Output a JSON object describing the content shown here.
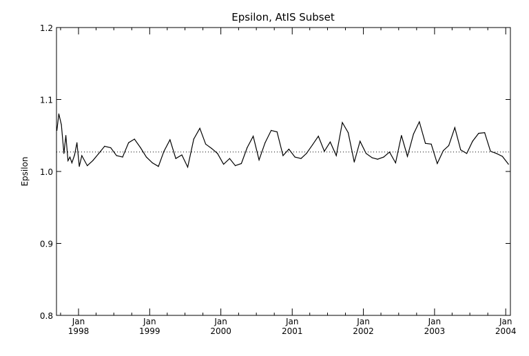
{
  "chart_data": {
    "type": "line",
    "title": "Epsilon, AtIS Subset",
    "xlabel": "",
    "ylabel": "Epsilon",
    "ylim": [
      0.8,
      1.2
    ],
    "yticks": [
      "0.8",
      "0.9",
      "1.0",
      "1.1",
      "1.2"
    ],
    "xlim": [
      "1997-09-10",
      "2004-01-25"
    ],
    "xticks": [
      {
        "month": "Jan",
        "year": "1998",
        "date": "1998-01-01"
      },
      {
        "month": "Jan",
        "year": "1999",
        "date": "1999-01-01"
      },
      {
        "month": "Jan",
        "year": "2000",
        "date": "2000-01-01"
      },
      {
        "month": "Jan",
        "year": "2001",
        "date": "2001-01-01"
      },
      {
        "month": "Jan",
        "year": "2002",
        "date": "2002-01-01"
      },
      {
        "month": "Jan",
        "year": "2003",
        "date": "2003-01-01"
      },
      {
        "month": "Jan",
        "year": "2004",
        "date": "2004-01-01"
      }
    ],
    "reference_line": {
      "y": 1.027,
      "style": "dotted"
    },
    "grid": false,
    "series": [
      {
        "x": [
          "1997-09-12",
          "1997-09-22",
          "1997-10-05",
          "1997-10-18",
          "1997-10-28",
          "1997-11-08",
          "1997-11-18",
          "1997-11-28",
          "1997-12-12",
          "1997-12-24",
          "1998-01-05",
          "1998-01-18",
          "1998-02-15",
          "1998-03-15",
          "1998-04-15",
          "1998-05-15",
          "1998-06-15",
          "1998-07-15",
          "1998-08-15",
          "1998-09-15",
          "1998-10-15",
          "1998-11-15",
          "1998-12-15",
          "1999-01-15",
          "1999-02-15",
          "1999-03-15",
          "1999-04-15",
          "1999-05-15",
          "1999-06-15",
          "1999-07-15",
          "1999-08-15",
          "1999-09-15",
          "1999-10-15",
          "1999-11-15",
          "1999-12-15",
          "2000-01-15",
          "2000-02-15",
          "2000-03-15",
          "2000-04-15",
          "2000-05-15",
          "2000-06-15",
          "2000-07-15",
          "2000-08-15",
          "2000-09-15",
          "2000-10-15",
          "2000-11-15",
          "2000-12-15",
          "2001-01-15",
          "2001-02-15",
          "2001-03-15",
          "2001-04-15",
          "2001-05-15",
          "2001-06-15",
          "2001-07-15",
          "2001-08-15",
          "2001-09-15",
          "2001-10-15",
          "2001-11-15",
          "2001-12-15",
          "2002-01-15",
          "2002-02-15",
          "2002-03-15",
          "2002-04-15",
          "2002-05-15",
          "2002-06-15",
          "2002-07-15",
          "2002-08-15",
          "2002-09-15",
          "2002-10-15",
          "2002-11-15",
          "2002-12-15",
          "2003-01-15",
          "2003-02-15",
          "2003-03-15",
          "2003-04-15",
          "2003-05-15",
          "2003-06-15",
          "2003-07-15",
          "2003-08-15",
          "2003-09-15",
          "2003-10-15",
          "2003-11-15",
          "2003-12-15",
          "2004-01-15"
        ],
        "y": [
          1.057,
          1.08,
          1.065,
          1.025,
          1.05,
          1.015,
          1.02,
          1.012,
          1.023,
          1.04,
          1.007,
          1.022,
          1.008,
          1.015,
          1.025,
          1.035,
          1.033,
          1.022,
          1.02,
          1.04,
          1.045,
          1.033,
          1.02,
          1.012,
          1.007,
          1.028,
          1.044,
          1.018,
          1.023,
          1.006,
          1.045,
          1.06,
          1.038,
          1.032,
          1.025,
          1.01,
          1.018,
          1.008,
          1.011,
          1.033,
          1.049,
          1.016,
          1.04,
          1.057,
          1.055,
          1.022,
          1.031,
          1.02,
          1.018,
          1.025,
          1.037,
          1.049,
          1.028,
          1.041,
          1.022,
          1.068,
          1.054,
          1.013,
          1.042,
          1.025,
          1.019,
          1.017,
          1.02,
          1.027,
          1.012,
          1.05,
          1.021,
          1.052,
          1.069,
          1.039,
          1.038,
          1.011,
          1.029,
          1.036,
          1.061,
          1.03,
          1.025,
          1.042,
          1.053,
          1.054,
          1.028,
          1.025,
          1.021,
          1.01
        ]
      }
    ]
  }
}
